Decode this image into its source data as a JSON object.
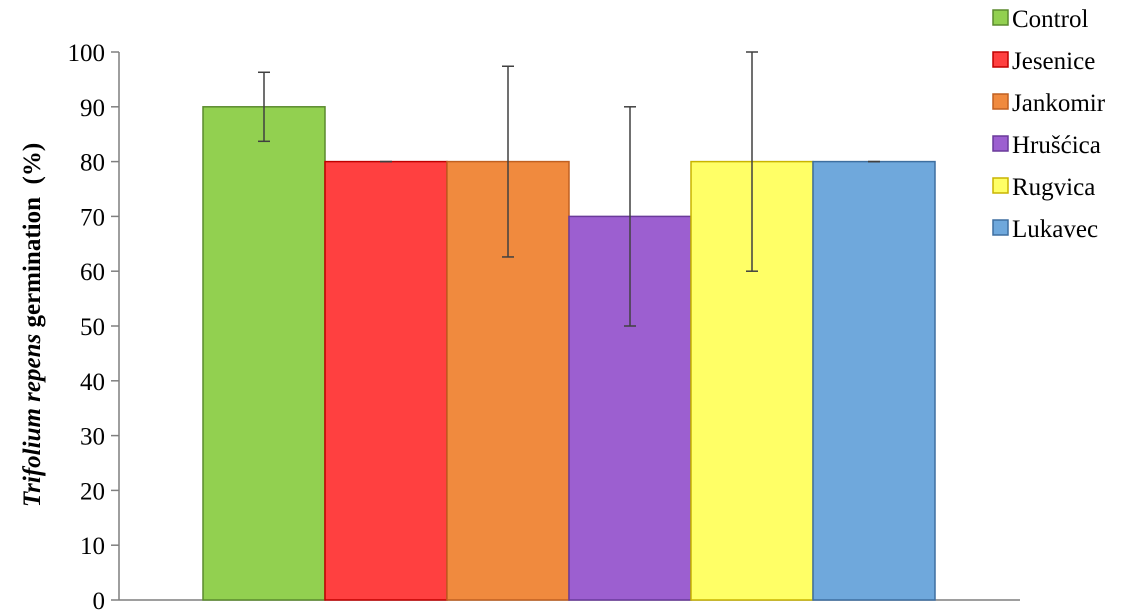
{
  "chart_data": {
    "type": "bar",
    "title": "",
    "xlabel": "",
    "ylabel_italic": "Trifolium repens",
    "ylabel_rest": " germination  (%)",
    "ylim": [
      0,
      100
    ],
    "yticks": [
      0,
      10,
      20,
      30,
      40,
      50,
      60,
      70,
      80,
      90,
      100
    ],
    "grid": false,
    "legend_position": "top-right",
    "categories": [
      "Control",
      "Jesenice",
      "Jankomir",
      "Hrušćica",
      "Rugvica",
      "Lukavec"
    ],
    "values": [
      90,
      80,
      80,
      70,
      80,
      80
    ],
    "error_low": [
      83.7,
      80,
      62.6,
      50,
      60,
      80
    ],
    "error_high": [
      96.3,
      80,
      97.4,
      90,
      100,
      80
    ],
    "colors": [
      "#92d050",
      "#ff4040",
      "#f08a3e",
      "#9c5fd0",
      "#ffff66",
      "#6fa8dc"
    ],
    "edge_colors": [
      "#5b8a2e",
      "#c00000",
      "#c06020",
      "#6a3a9a",
      "#c8b400",
      "#3e6fa0"
    ]
  }
}
